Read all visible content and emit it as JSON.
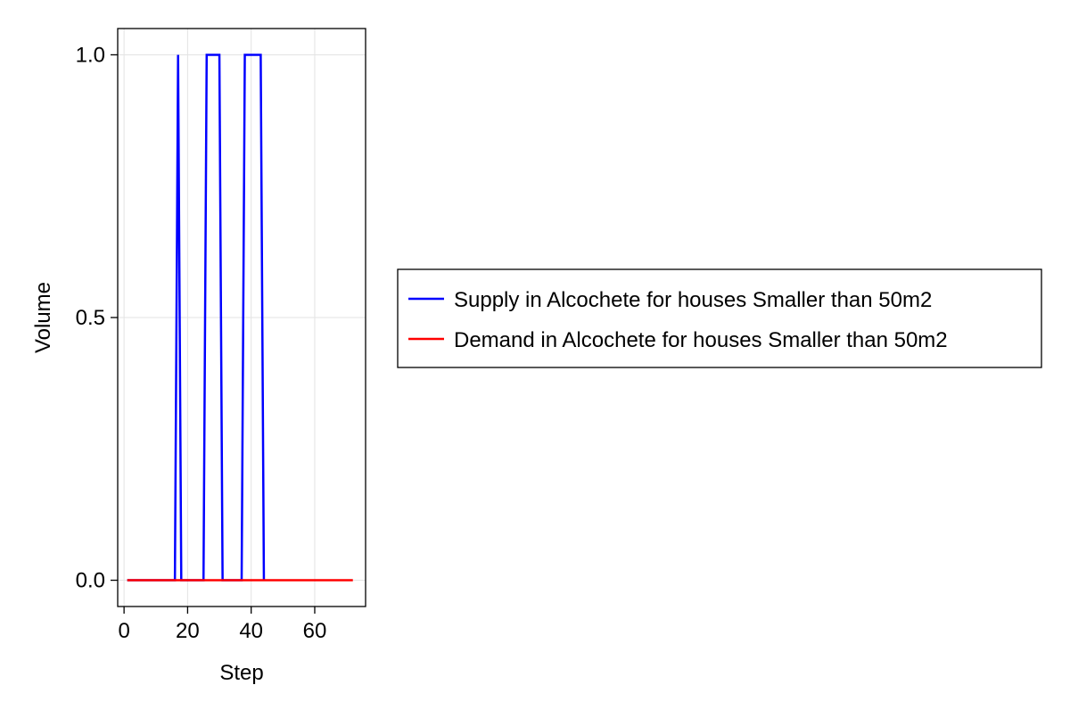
{
  "chart_data": {
    "type": "line",
    "xlabel": "Step",
    "ylabel": "Volume",
    "xlim": [
      -2,
      76
    ],
    "ylim": [
      -0.05,
      1.05
    ],
    "x_ticks": [
      0,
      20,
      40,
      60
    ],
    "x_tick_labels": [
      "0",
      "20",
      "40",
      "60"
    ],
    "y_ticks": [
      0,
      0.5,
      1
    ],
    "y_tick_labels": [
      "0.0",
      "0.5",
      "1.0"
    ],
    "grid": true,
    "legend_position": "right",
    "series": [
      {
        "name": "Supply in Alcochete for houses Smaller than 50m2",
        "color": "#0000ff",
        "x": [
          1,
          16,
          17,
          18,
          25,
          26,
          27,
          28,
          29,
          30,
          31,
          37,
          38,
          39,
          40,
          41,
          42,
          43,
          44
        ],
        "y": [
          0,
          0,
          1,
          0,
          0,
          1,
          1,
          1,
          1,
          1,
          0,
          0,
          1,
          1,
          1,
          1,
          1,
          1,
          0
        ]
      },
      {
        "name": "Demand in Alcochete for houses Smaller than 50m2",
        "color": "#ff0000",
        "x": [
          1,
          72
        ],
        "y": [
          0,
          0
        ]
      }
    ]
  }
}
